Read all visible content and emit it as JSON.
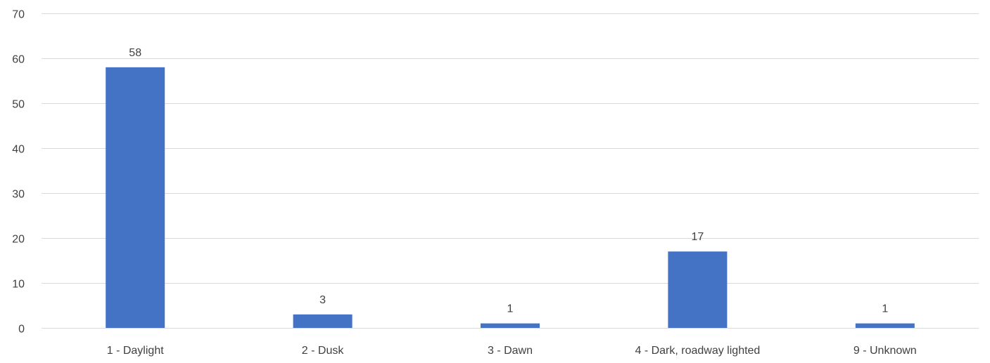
{
  "chart_data": {
    "type": "bar",
    "title": "",
    "xlabel": "",
    "ylabel": "",
    "categories": [
      "1 - Daylight",
      "2 - Dusk",
      "3 - Dawn",
      "4 - Dark, roadway lighted",
      "9 - Unknown"
    ],
    "values": [
      58,
      3,
      1,
      17,
      1
    ],
    "data_labels": [
      "58",
      "3",
      "1",
      "17",
      "1"
    ],
    "ylim": [
      0,
      70
    ],
    "yticks": [
      0,
      10,
      20,
      30,
      40,
      50,
      60,
      70
    ],
    "grid": true,
    "legend": "none",
    "bar_color": "#4472C4",
    "grid_color": "#D9D9D9",
    "text_color": "#404040"
  }
}
